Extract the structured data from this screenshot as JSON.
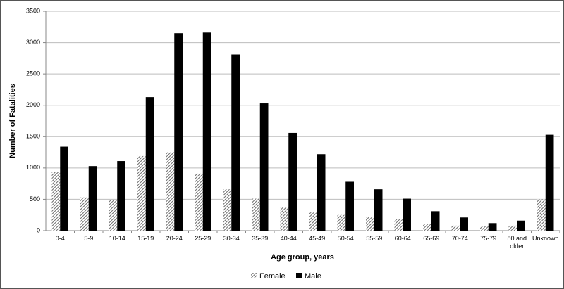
{
  "chart_data": {
    "type": "bar",
    "x_label": "Age group, years",
    "y_label": "Number of Fatalities",
    "categories": [
      "0-4",
      "5-9",
      "10-14",
      "15-19",
      "20-24",
      "25-29",
      "30-34",
      "35-39",
      "40-44",
      "45-49",
      "50-54",
      "55-59",
      "60-64",
      "65-69",
      "70-74",
      "75-79",
      "80 and older",
      "Unknown"
    ],
    "series": [
      {
        "name": "Female",
        "color": "#6e6e6e",
        "pattern": "hatch",
        "values": [
          940,
          530,
          490,
          1190,
          1250,
          910,
          660,
          510,
          380,
          290,
          250,
          220,
          190,
          110,
          80,
          70,
          80,
          500
        ]
      },
      {
        "name": "Male",
        "color": "#000000",
        "pattern": "solid",
        "values": [
          1340,
          1030,
          1110,
          2130,
          3150,
          3160,
          2810,
          2030,
          1560,
          1220,
          780,
          660,
          510,
          310,
          210,
          120,
          160,
          1530
        ]
      }
    ],
    "ylim": [
      0,
      3500
    ],
    "yticks": [
      0,
      500,
      1000,
      1500,
      2000,
      2500,
      3000,
      3500
    ],
    "grid": true,
    "legend": "bottom"
  }
}
